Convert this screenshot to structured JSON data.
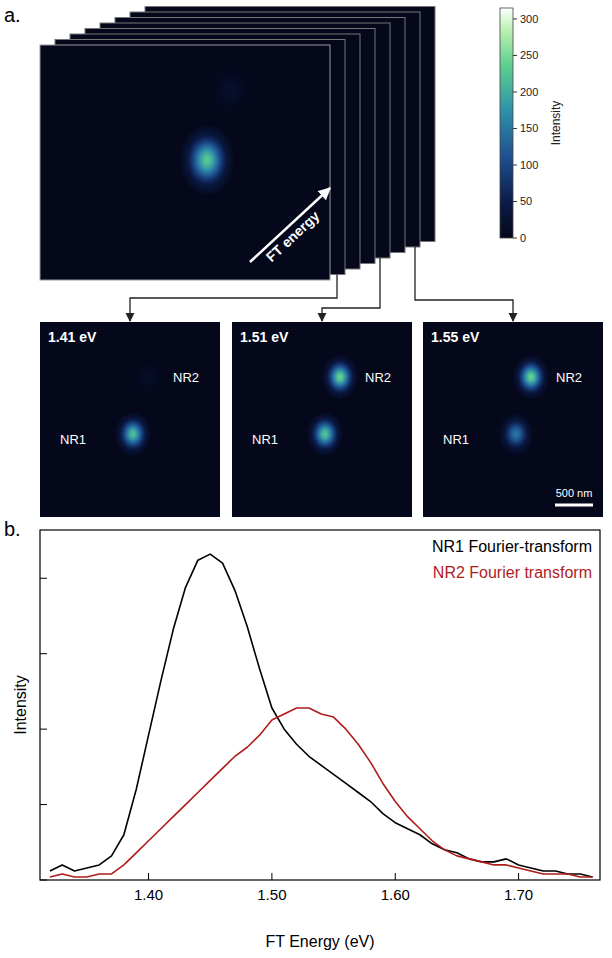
{
  "chart_data": [
    {
      "type": "image",
      "panel_label": "a.",
      "stack_label": "FT energy",
      "spot_names": [
        "NR1",
        "NR2"
      ],
      "main_image": {
        "intensities": [
          230,
          20
        ]
      },
      "frames": [
        {
          "label": "1.41 eV",
          "intensities": [
            220,
            15
          ]
        },
        {
          "label": "1.51 eV",
          "intensities": [
            225,
            240
          ]
        },
        {
          "label": "1.55 eV",
          "intensities": [
            150,
            240
          ]
        }
      ],
      "colorbar": {
        "label": "Intensity",
        "range": [
          0,
          315
        ],
        "ticks": [
          0,
          50,
          100,
          150,
          200,
          250,
          300
        ]
      },
      "scale_bar": "500 nm"
    },
    {
      "type": "line",
      "panel_label": "b.",
      "x_label": "FT Energy (eV)",
      "y_label": "Intensity",
      "x": [
        1.32,
        1.33,
        1.34,
        1.35,
        1.36,
        1.37,
        1.38,
        1.39,
        1.4,
        1.41,
        1.42,
        1.43,
        1.44,
        1.45,
        1.46,
        1.47,
        1.48,
        1.49,
        1.5,
        1.51,
        1.52,
        1.53,
        1.54,
        1.55,
        1.56,
        1.57,
        1.58,
        1.59,
        1.6,
        1.61,
        1.62,
        1.63,
        1.64,
        1.65,
        1.66,
        1.67,
        1.68,
        1.69,
        1.7,
        1.71,
        1.72,
        1.73,
        1.74,
        1.75,
        1.76
      ],
      "series": [
        {
          "name": "NR1 Fourier-transform",
          "color": "#000000",
          "values": [
            0.03,
            0.05,
            0.03,
            0.04,
            0.05,
            0.08,
            0.15,
            0.3,
            0.48,
            0.66,
            0.83,
            0.97,
            1.06,
            1.08,
            1.05,
            0.96,
            0.84,
            0.7,
            0.57,
            0.5,
            0.45,
            0.41,
            0.38,
            0.35,
            0.32,
            0.29,
            0.26,
            0.22,
            0.19,
            0.17,
            0.15,
            0.12,
            0.1,
            0.09,
            0.07,
            0.06,
            0.06,
            0.07,
            0.05,
            0.04,
            0.03,
            0.03,
            0.02,
            0.02,
            0.01
          ]
        },
        {
          "name": "NR2 Fourier transform",
          "color": "#b01c1c",
          "values": [
            0.01,
            0.02,
            0.01,
            0.01,
            0.02,
            0.02,
            0.05,
            0.09,
            0.13,
            0.17,
            0.21,
            0.25,
            0.29,
            0.33,
            0.37,
            0.41,
            0.44,
            0.48,
            0.53,
            0.55,
            0.57,
            0.57,
            0.55,
            0.54,
            0.5,
            0.45,
            0.39,
            0.32,
            0.26,
            0.21,
            0.17,
            0.13,
            0.1,
            0.08,
            0.07,
            0.06,
            0.05,
            0.05,
            0.04,
            0.03,
            0.02,
            0.02,
            0.02,
            0.01,
            0.01
          ]
        }
      ],
      "xlim": [
        1.312,
        1.766
      ],
      "xticks": [
        {
          "value": 1.4,
          "label": "1.40"
        },
        {
          "value": 1.5,
          "label": "1.50"
        },
        {
          "value": 1.6,
          "label": "1.60"
        },
        {
          "value": 1.7,
          "label": "1.70"
        }
      ],
      "ylim": [
        0,
        1.16
      ],
      "yticks": [
        0,
        0.25,
        0.5,
        0.75,
        1
      ],
      "tick_labels": "x",
      "legend": "upper right"
    }
  ]
}
